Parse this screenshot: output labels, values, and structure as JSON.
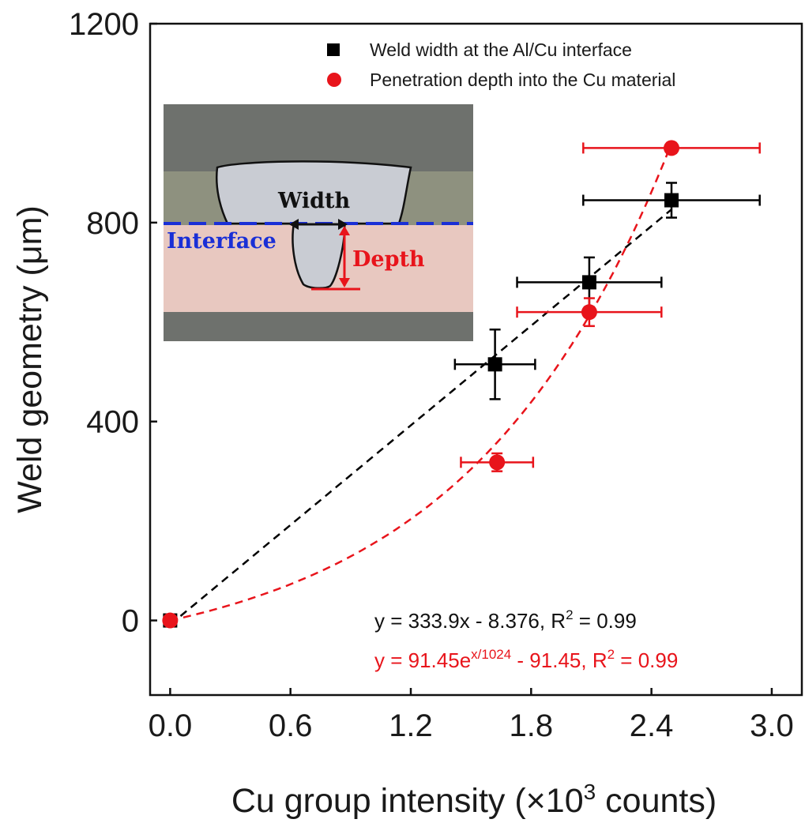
{
  "chart_data": {
    "type": "scatter",
    "xlabel_main": "Cu group intensity (×10",
    "xlabel_sup": "3",
    "xlabel_end": "  counts)",
    "ylabel": "Weld geometry (μm)",
    "xlim": [
      -0.1,
      3.15
    ],
    "ylim": [
      -150,
      1200
    ],
    "xticks": [
      0.0,
      0.6,
      1.2,
      1.8,
      2.4,
      3.0
    ],
    "xtick_labels": [
      "0.0",
      "0.6",
      "1.2",
      "1.8",
      "2.4",
      "3.0"
    ],
    "yticks": [
      0,
      400,
      800,
      1200
    ],
    "ytick_labels": [
      "0",
      "400",
      "800",
      "1200"
    ],
    "legend_position": "top-right",
    "series": [
      {
        "name": "Weld width at the Al/Cu interface",
        "marker": "square",
        "color": "#000000",
        "x": [
          0.0,
          1.62,
          2.09,
          2.5
        ],
        "y": [
          0,
          515,
          680,
          845
        ],
        "xerr": [
          0.0,
          0.2,
          0.36,
          0.44
        ],
        "yerr": [
          0,
          70,
          50,
          35
        ],
        "fit": {
          "kind": "linear",
          "a": 333.9,
          "b": -8.376,
          "x_range": [
            0.0,
            2.5
          ]
        }
      },
      {
        "name": "Penetration depth into the Cu material",
        "marker": "circle",
        "color": "#e8141b",
        "x": [
          0.0,
          1.63,
          2.09,
          2.5
        ],
        "y": [
          0,
          318,
          620,
          950
        ],
        "xerr": [
          0.0,
          0.18,
          0.36,
          0.44
        ],
        "yerr": [
          0,
          18,
          28,
          10
        ],
        "fit": {
          "kind": "exponential",
          "A": 91.45,
          "c": 1024,
          "B": -91.45,
          "x_range": [
            0.0,
            2.5
          ]
        }
      }
    ],
    "annotations": {
      "fit_black": {
        "pre": "y = 333.9x - 8.376, R",
        "sup": "2",
        "post": " = 0.99"
      },
      "fit_red": {
        "pre": "y = 91.45e",
        "sup1": "x/1024",
        "mid": " - 91.45, R",
        "sup2": "2",
        "post": " = 0.99"
      }
    },
    "inset": {
      "width_label": "Width",
      "interface_label": "Interface",
      "depth_label": "Depth"
    }
  },
  "colors": {
    "red": "#e8141b",
    "black": "#000000",
    "blue": "#1a2fd6",
    "inset_gray": "#6e716d",
    "inset_al": "#8e917f",
    "inset_cu": "#e8c8c0"
  }
}
